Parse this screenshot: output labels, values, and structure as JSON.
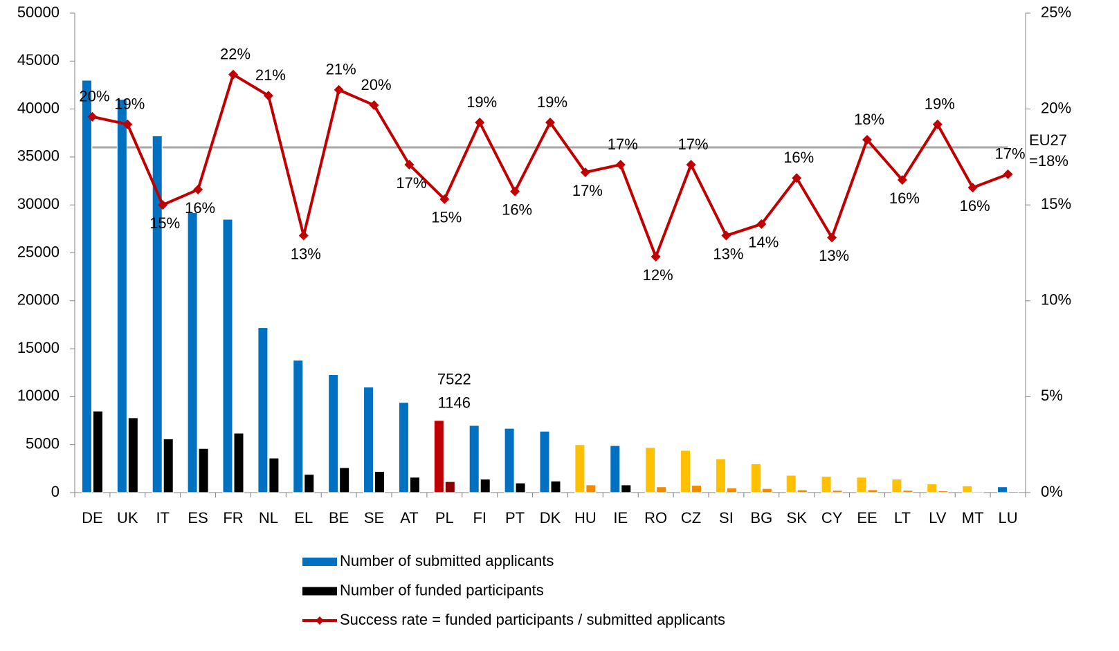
{
  "chart_data": {
    "type": "bar_line",
    "categories": [
      "DE",
      "UK",
      "IT",
      "ES",
      "FR",
      "NL",
      "EL",
      "BE",
      "SE",
      "AT",
      "PL",
      "FI",
      "PT",
      "DK",
      "HU",
      "IE",
      "RO",
      "CZ",
      "SI",
      "BG",
      "SK",
      "CY",
      "EE",
      "LT",
      "LV",
      "MT",
      "LU"
    ],
    "series": [
      {
        "name": "Number of submitted applicants",
        "type": "bar",
        "color": "#0070c0",
        "colors": [
          "#0070c0",
          "#0070c0",
          "#0070c0",
          "#0070c0",
          "#0070c0",
          "#0070c0",
          "#0070c0",
          "#0070c0",
          "#0070c0",
          "#0070c0",
          "#c00000",
          "#0070c0",
          "#0070c0",
          "#0070c0",
          "#ffc000",
          "#0070c0",
          "#ffc000",
          "#ffc000",
          "#ffc000",
          "#ffc000",
          "#ffc000",
          "#ffc000",
          "#ffc000",
          "#ffc000",
          "#ffc000",
          "#ffc000",
          "#0070c0"
        ],
        "values": [
          43000,
          41000,
          37200,
          29200,
          28500,
          17200,
          13800,
          12300,
          11000,
          9400,
          7522,
          7000,
          6700,
          6400,
          5000,
          4900,
          4700,
          4400,
          3500,
          3000,
          1800,
          1700,
          1600,
          1400,
          900,
          700,
          600
        ],
        "value_labels": [
          null,
          null,
          null,
          null,
          null,
          null,
          null,
          null,
          null,
          null,
          "7522",
          null,
          null,
          null,
          null,
          null,
          null,
          null,
          null,
          null,
          null,
          null,
          null,
          null,
          null,
          null,
          null
        ]
      },
      {
        "name": "Number of funded participants",
        "type": "bar",
        "color": "#000000",
        "colors": [
          "#000000",
          "#000000",
          "#000000",
          "#000000",
          "#000000",
          "#000000",
          "#000000",
          "#000000",
          "#000000",
          "#000000",
          "#8b0000",
          "#000000",
          "#000000",
          "#000000",
          "#f08a00",
          "#000000",
          "#f08a00",
          "#f08a00",
          "#f08a00",
          "#f08a00",
          "#f08a00",
          "#f08a00",
          "#f08a00",
          "#f08a00",
          "#f08a00",
          "#f08a00",
          "#000000"
        ],
        "values": [
          8500,
          7800,
          5600,
          4600,
          6200,
          3600,
          1900,
          2600,
          2200,
          1600,
          1146,
          1400,
          1000,
          1200,
          800,
          800,
          600,
          750,
          480,
          420,
          280,
          230,
          290,
          230,
          170,
          110,
          100
        ],
        "value_labels": [
          null,
          null,
          null,
          null,
          null,
          null,
          null,
          null,
          null,
          null,
          "1146",
          null,
          null,
          null,
          null,
          null,
          null,
          null,
          null,
          null,
          null,
          null,
          null,
          null,
          null,
          null,
          null
        ]
      },
      {
        "name": "Success rate = funded participants / submitted applicants",
        "type": "line",
        "axis": "y2",
        "color": "#c00000",
        "values": [
          19.6,
          19.2,
          15.0,
          15.8,
          21.8,
          20.7,
          13.4,
          21.0,
          20.2,
          17.1,
          15.3,
          19.3,
          15.7,
          19.3,
          16.7,
          17.1,
          12.3,
          17.1,
          13.4,
          14.0,
          16.4,
          13.3,
          18.4,
          16.3,
          19.2,
          15.9,
          16.6
        ],
        "value_labels": [
          "20%",
          "19%",
          "15%",
          "16%",
          "22%",
          "21%",
          "13%",
          "21%",
          "20%",
          "17%",
          "15%",
          "19%",
          "16%",
          "19%",
          "17%",
          "17%",
          "12%",
          "17%",
          "13%",
          "14%",
          "16%",
          "13%",
          "18%",
          "16%",
          "19%",
          "16%",
          "17%"
        ]
      }
    ],
    "reference": {
      "value": 18,
      "axis": "y2",
      "color": "#a6a6a6",
      "label": [
        "EU27",
        "=18%"
      ],
      "label_color": "#c00000"
    },
    "ylim": [
      0,
      50000
    ],
    "yticks": [
      0,
      5000,
      10000,
      15000,
      20000,
      25000,
      30000,
      35000,
      40000,
      45000,
      50000
    ],
    "y2lim": [
      0,
      25
    ],
    "y2ticks": [
      {
        "value": 0,
        "label": "0%"
      },
      {
        "value": 5,
        "label": "5%"
      },
      {
        "value": 10,
        "label": "10%"
      },
      {
        "value": 15,
        "label": "15%"
      },
      {
        "value": 20,
        "label": "20%"
      },
      {
        "value": 25,
        "label": "25%"
      }
    ],
    "grid": false,
    "legend": "bottom"
  }
}
